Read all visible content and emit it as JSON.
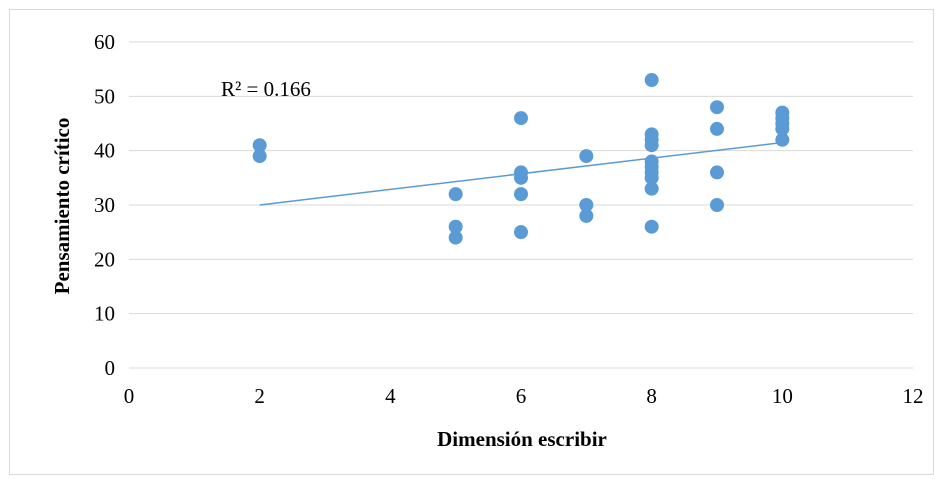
{
  "chart_data": {
    "type": "scatter",
    "title": "",
    "xlabel": "Dimensión escribir",
    "ylabel": "Pensamiento crítico",
    "xlim": [
      0,
      12
    ],
    "ylim": [
      0,
      60
    ],
    "x_ticks": [
      "0",
      "2",
      "4",
      "6",
      "8",
      "10",
      "12"
    ],
    "y_ticks": [
      "0",
      "10",
      "20",
      "30",
      "40",
      "50",
      "60"
    ],
    "grid": "horizontal",
    "legend": "none",
    "annotation": "R² = 0.166",
    "marker_color": "#5b9bd5",
    "trendline_color": "#5b9bd5",
    "trendline": {
      "type": "linear",
      "x": [
        2,
        10
      ],
      "y": [
        30,
        41.5
      ]
    },
    "points": [
      {
        "x": 2,
        "y": 41
      },
      {
        "x": 2,
        "y": 39
      },
      {
        "x": 5,
        "y": 32
      },
      {
        "x": 5,
        "y": 26
      },
      {
        "x": 5,
        "y": 24
      },
      {
        "x": 6,
        "y": 46
      },
      {
        "x": 6,
        "y": 36
      },
      {
        "x": 6,
        "y": 35
      },
      {
        "x": 6,
        "y": 32
      },
      {
        "x": 6,
        "y": 25
      },
      {
        "x": 7,
        "y": 39
      },
      {
        "x": 7,
        "y": 30
      },
      {
        "x": 7,
        "y": 28
      },
      {
        "x": 8,
        "y": 53
      },
      {
        "x": 8,
        "y": 43
      },
      {
        "x": 8,
        "y": 42
      },
      {
        "x": 8,
        "y": 41
      },
      {
        "x": 8,
        "y": 38
      },
      {
        "x": 8,
        "y": 37
      },
      {
        "x": 8,
        "y": 36
      },
      {
        "x": 8,
        "y": 35
      },
      {
        "x": 8,
        "y": 33
      },
      {
        "x": 8,
        "y": 26
      },
      {
        "x": 9,
        "y": 48
      },
      {
        "x": 9,
        "y": 44
      },
      {
        "x": 9,
        "y": 36
      },
      {
        "x": 9,
        "y": 30
      },
      {
        "x": 10,
        "y": 47
      },
      {
        "x": 10,
        "y": 46
      },
      {
        "x": 10,
        "y": 45
      },
      {
        "x": 10,
        "y": 44
      },
      {
        "x": 10,
        "y": 42
      }
    ]
  }
}
